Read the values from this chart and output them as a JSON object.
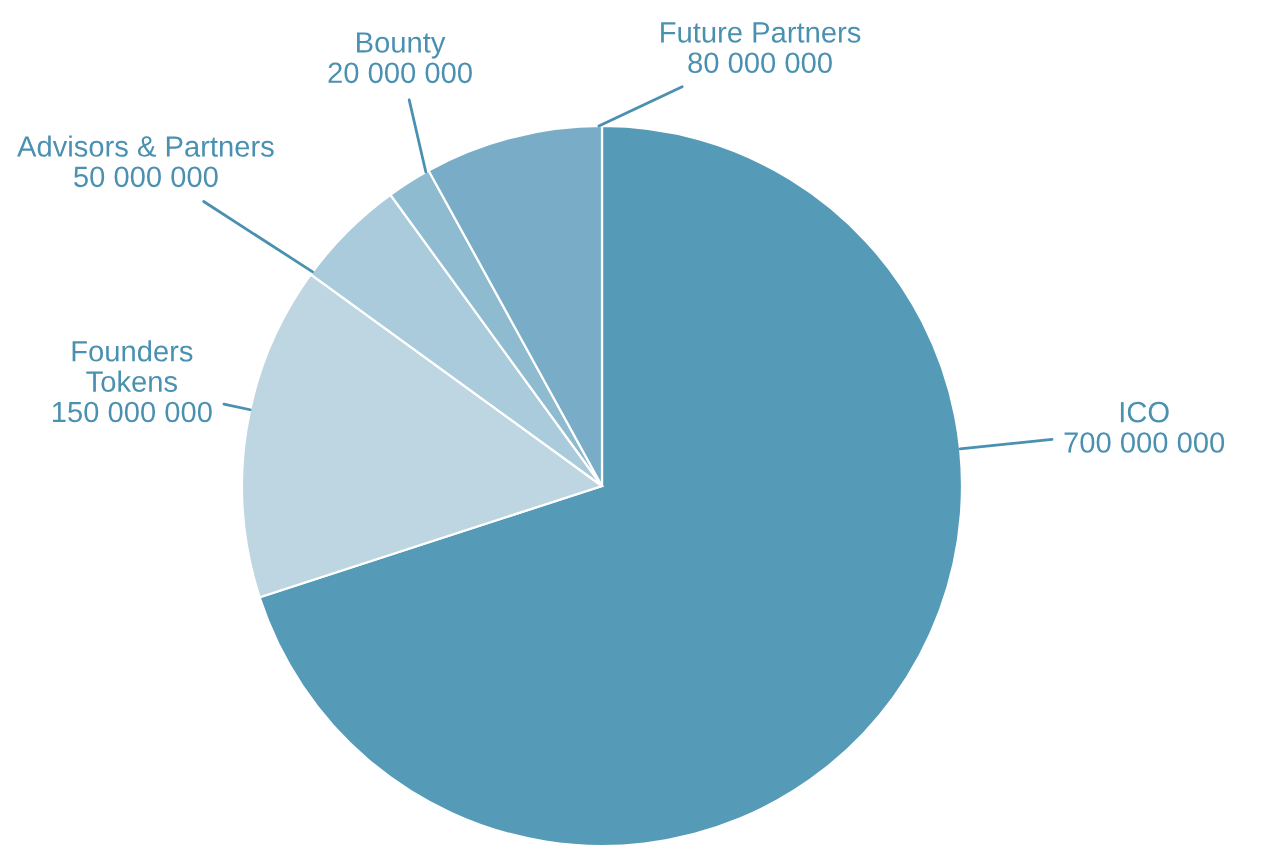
{
  "chart_data": {
    "type": "pie",
    "categories": [
      "ICO",
      "Founders\nTokens",
      "Advisors & Partners",
      "Bounty",
      "Future Partners"
    ],
    "values": [
      700000000,
      150000000,
      50000000,
      20000000,
      80000000
    ],
    "value_labels": [
      "700 000 000",
      "150 000 000",
      "50 000 000",
      "20 000 000",
      "80 000 000"
    ],
    "colors": [
      "#559bb8",
      "#bed6e1",
      "#a9cbdb",
      "#8fbbd0",
      "#79adc7"
    ],
    "legend": false
  }
}
